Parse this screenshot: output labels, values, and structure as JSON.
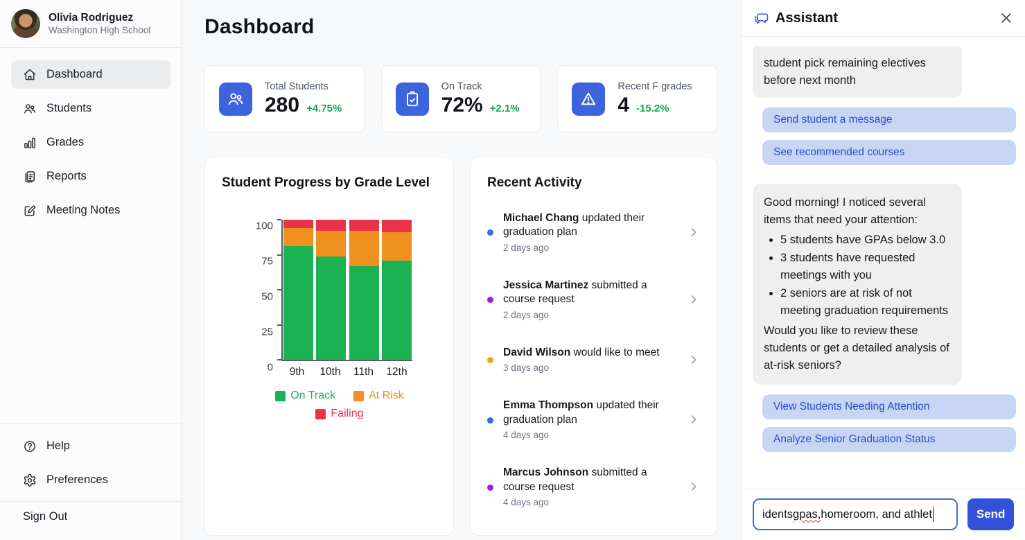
{
  "sidebar": {
    "profile": {
      "name": "Olivia Rodriguez",
      "school": "Washington High School"
    },
    "nav": [
      {
        "label": "Dashboard",
        "icon": "home-icon",
        "active": true
      },
      {
        "label": "Students",
        "icon": "users-icon",
        "active": false
      },
      {
        "label": "Grades",
        "icon": "bar-chart-icon",
        "active": false
      },
      {
        "label": "Reports",
        "icon": "report-icon",
        "active": false
      },
      {
        "label": "Meeting Notes",
        "icon": "edit-icon",
        "active": false
      }
    ],
    "footer": [
      {
        "label": "Help",
        "icon": "help-circle-icon"
      },
      {
        "label": "Preferences",
        "icon": "gear-icon"
      }
    ],
    "sign_out_label": "Sign Out"
  },
  "header": {
    "title": "Dashboard"
  },
  "stats": [
    {
      "label": "Total Students",
      "value": "280",
      "delta": "+4.75%",
      "icon": "users-icon"
    },
    {
      "label": "On Track",
      "value": "72%",
      "delta": "+2.1%",
      "icon": "clipboard-check-icon"
    },
    {
      "label": "Recent F grades",
      "value": "4",
      "delta": "-15.2%",
      "icon": "alert-triangle-icon"
    }
  ],
  "colors": {
    "accent_blue": "#3d63dd",
    "delta_green": "#16a34a",
    "pill_bg": "#c7d6f5",
    "pill_text": "#2b4cc8",
    "send_blue": "#3452d9"
  },
  "chart_data": {
    "type": "bar",
    "stacked": true,
    "title": "Student Progress by Grade Level",
    "categories": [
      "9th",
      "10th",
      "11th",
      "12th"
    ],
    "series": [
      {
        "name": "On Track",
        "color": "#1bb351",
        "values": [
          81,
          74,
          67,
          71
        ]
      },
      {
        "name": "At Risk",
        "color": "#f0901f",
        "values": [
          13,
          18,
          25,
          20
        ]
      },
      {
        "name": "Failing",
        "color": "#ea3348",
        "values": [
          6,
          8,
          8,
          9
        ]
      }
    ],
    "xlabel": "",
    "ylabel": "",
    "ylim": [
      0,
      100
    ],
    "yticks": [
      0,
      25,
      50,
      75,
      100
    ],
    "grid": false,
    "legend_position": "bottom"
  },
  "activity": {
    "title": "Recent Activity",
    "items": [
      {
        "name": "Michael Chang",
        "action": " updated their graduation plan",
        "time": "2 days ago",
        "dot_color": "#2f6bea"
      },
      {
        "name": "Jessica Martinez",
        "action": " submitted a course request",
        "time": "2 days ago",
        "dot_color": "#a21ce0"
      },
      {
        "name": "David Wilson",
        "action": " would like to meet",
        "time": "3 days ago",
        "dot_color": "#e7a60e"
      },
      {
        "name": "Emma Thompson",
        "action": " updated their graduation plan",
        "time": "4 days ago",
        "dot_color": "#2f6bea"
      },
      {
        "name": "Marcus Johnson",
        "action": " submitted a course request",
        "time": "4 days ago",
        "dot_color": "#a21ce0"
      }
    ]
  },
  "assistant": {
    "title": "Assistant",
    "clipped_message": "student pick remaining electives before next month",
    "top_actions": [
      "Send student a message",
      "See recommended courses"
    ],
    "main_message": {
      "intro": "Good morning! I noticed several items that need your attention:",
      "bullets": [
        "5 students have GPAs below 3.0",
        "3 students have requested meetings with you",
        "2 seniors are at risk of not meeting graduation requirements"
      ],
      "outro": "Would you like to review these students or get a detailed analysis of at-risk seniors?"
    },
    "bottom_actions": [
      "View Students Needing Attention",
      "Analyze Senior Graduation Status"
    ],
    "input": {
      "value_before": "idents ",
      "value_misspelled": "gpas,",
      "value_after": " homeroom, and athlet",
      "send_label": "Send"
    }
  }
}
